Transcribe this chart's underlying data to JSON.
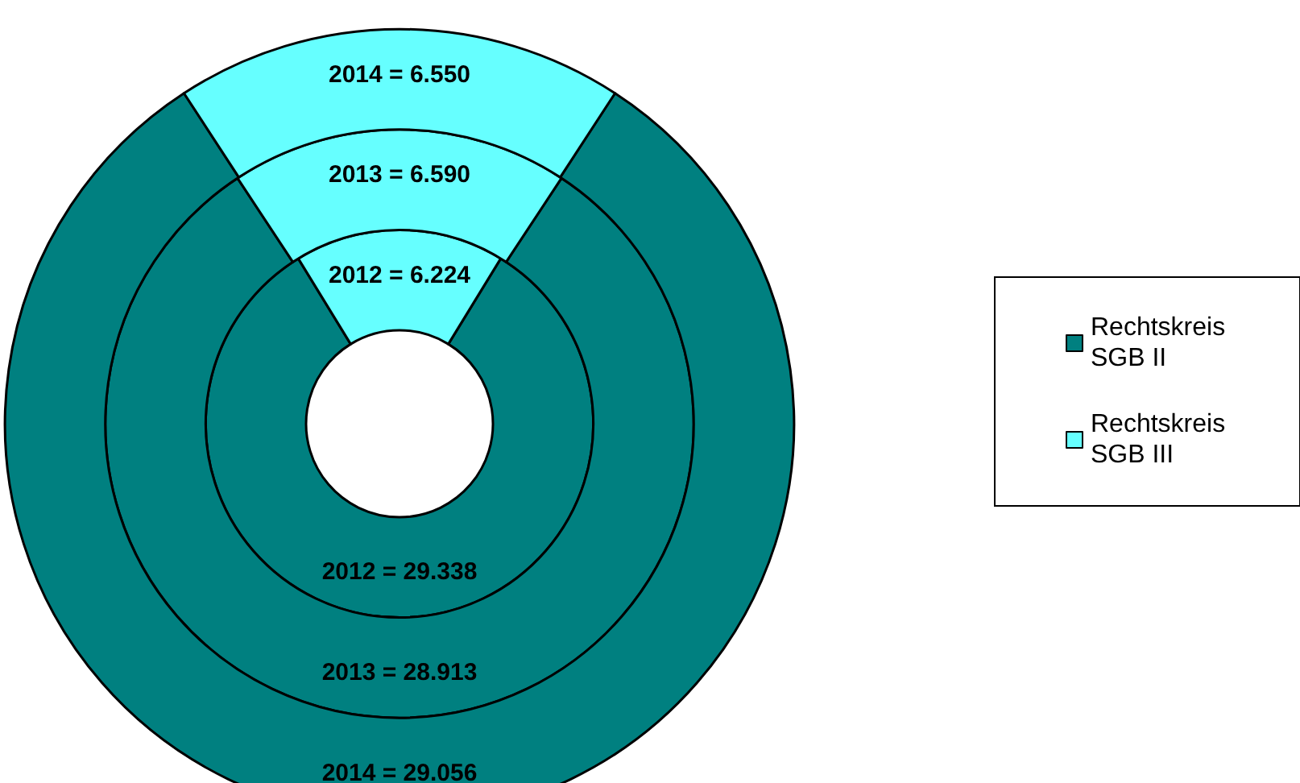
{
  "chart_data": [
    {
      "type": "donut",
      "categories": [
        "Rechtskreis SGB II",
        "Rechtskreis SGB III"
      ],
      "values": [
        29338,
        6224
      ],
      "colors": [
        "#008080",
        "#66ffff"
      ],
      "value_labels": [
        "2012 = 29.338",
        "2012 = 6.224"
      ],
      "legend": "right"
    },
    {
      "type": "donut",
      "categories": [
        null,
        null
      ],
      "values": [
        28913,
        6590
      ],
      "colors": [
        "#008080",
        "#66ffff"
      ],
      "value_labels": [
        "2013 = 28.913",
        "2013 = 6.590"
      ]
    },
    {
      "type": "donut",
      "categories": [
        null,
        null
      ],
      "values": [
        29056,
        6550
      ],
      "colors": [
        "#008080",
        "#66ffff"
      ],
      "value_labels": [
        "2014 = 29.056",
        "2014 = 6.550"
      ]
    }
  ]
}
